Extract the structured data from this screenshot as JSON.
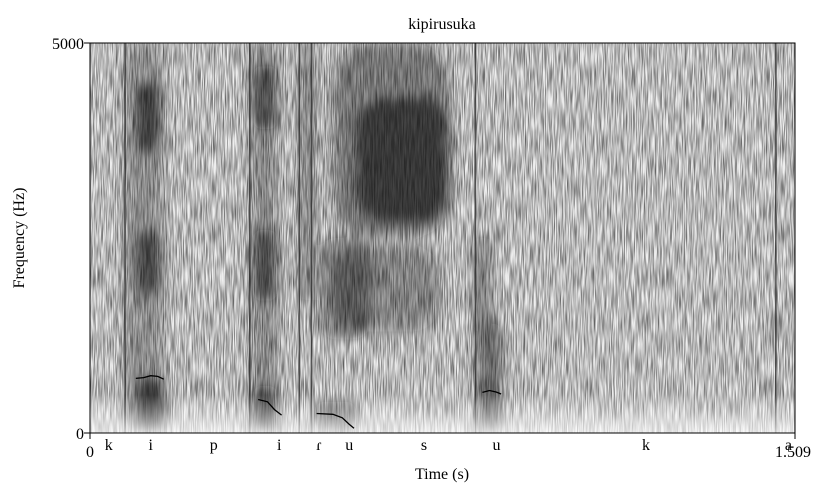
{
  "chart_data": {
    "type": "heatmap",
    "subtype": "spectrogram",
    "title": "kipirusuka",
    "xlabel": "Time (s)",
    "ylabel": "Frequency (Hz)",
    "xlim": [
      0,
      1.509
    ],
    "ylim": [
      0,
      5000
    ],
    "x_tick_labels": [
      "0",
      "1.509"
    ],
    "y_tick_labels": [
      "0",
      "5000"
    ],
    "colormap": "grayscale (dark = high energy)",
    "grid": false,
    "legend": "none",
    "segments": [
      {
        "label": "k",
        "time": 0.04
      },
      {
        "label": "i",
        "time": 0.13
      },
      {
        "label": "p",
        "time": 0.265
      },
      {
        "label": "i",
        "time": 0.405
      },
      {
        "label": "ɾ",
        "time": 0.49
      },
      {
        "label": "u",
        "time": 0.555
      },
      {
        "label": "s",
        "time": 0.715
      },
      {
        "label": "u",
        "time": 0.87
      },
      {
        "label": "k",
        "time": 1.19
      },
      {
        "label": "a",
        "time": 1.495
      }
    ],
    "energy_regions": [
      {
        "t0": 0.075,
        "t1": 0.155,
        "f0": 0,
        "f1": 5000,
        "intensity": 0.42
      },
      {
        "t0": 0.1,
        "t1": 0.15,
        "f0": 3600,
        "f1": 4500,
        "intensity": 0.9
      },
      {
        "t0": 0.1,
        "t1": 0.15,
        "f0": 1800,
        "f1": 2600,
        "intensity": 0.85
      },
      {
        "t0": 0.1,
        "t1": 0.16,
        "f0": 0,
        "f1": 700,
        "intensity": 0.95
      },
      {
        "t0": 0.345,
        "t1": 0.4,
        "f0": 0,
        "f1": 5000,
        "intensity": 0.38
      },
      {
        "t0": 0.35,
        "t1": 0.4,
        "f0": 3900,
        "f1": 4700,
        "intensity": 0.8
      },
      {
        "t0": 0.35,
        "t1": 0.4,
        "f0": 1700,
        "f1": 2600,
        "intensity": 0.8
      },
      {
        "t0": 0.35,
        "t1": 0.4,
        "f0": 0,
        "f1": 600,
        "intensity": 0.85
      },
      {
        "t0": 0.45,
        "t1": 0.48,
        "f0": 1700,
        "f1": 5000,
        "intensity": 0.55
      },
      {
        "t0": 0.49,
        "t1": 0.6,
        "f0": 1200,
        "f1": 2500,
        "intensity": 0.55
      },
      {
        "t0": 0.48,
        "t1": 0.57,
        "f0": 0,
        "f1": 400,
        "intensity": 0.7
      },
      {
        "t0": 0.52,
        "t1": 0.77,
        "f0": 2500,
        "f1": 5000,
        "intensity": 0.6
      },
      {
        "t0": 0.57,
        "t1": 0.77,
        "f0": 2700,
        "f1": 4300,
        "intensity": 0.85
      },
      {
        "t0": 0.52,
        "t1": 0.75,
        "f0": 1300,
        "f1": 2400,
        "intensity": 0.5
      },
      {
        "t0": 0.82,
        "t1": 0.86,
        "f0": 1300,
        "f1": 2500,
        "intensity": 0.55
      },
      {
        "t0": 0.83,
        "t1": 0.88,
        "f0": 0,
        "f1": 1400,
        "intensity": 0.75
      },
      {
        "t0": 1.46,
        "t1": 1.475,
        "f0": 1200,
        "f1": 1500,
        "intensity": 0.55
      }
    ],
    "striations": [
      0.075,
      0.342,
      0.448,
      0.474,
      0.825,
      1.468
    ],
    "pitch_tracks": [
      {
        "points": [
          [
            0.098,
            700
          ],
          [
            0.115,
            710
          ],
          [
            0.13,
            735
          ],
          [
            0.145,
            725
          ],
          [
            0.158,
            690
          ]
        ]
      },
      {
        "points": [
          [
            0.36,
            430
          ],
          [
            0.38,
            400
          ],
          [
            0.395,
            300
          ],
          [
            0.41,
            230
          ]
        ]
      },
      {
        "points": [
          [
            0.485,
            250
          ],
          [
            0.52,
            240
          ],
          [
            0.54,
            195
          ],
          [
            0.555,
            110
          ],
          [
            0.565,
            60
          ]
        ]
      },
      {
        "points": [
          [
            0.84,
            520
          ],
          [
            0.855,
            545
          ],
          [
            0.87,
            525
          ],
          [
            0.88,
            500
          ]
        ]
      }
    ]
  }
}
